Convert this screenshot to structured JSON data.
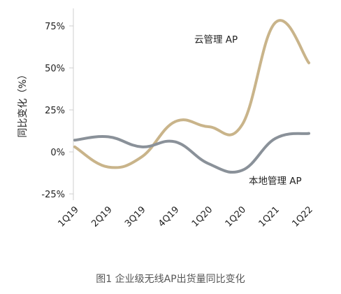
{
  "chart_data": {
    "type": "line",
    "title": "",
    "caption": "图1  企业级无线AP出货量同比变化",
    "xlabel": "",
    "ylabel": "同比变化（%）",
    "categories": [
      "1Q19",
      "2Q19",
      "3Q19",
      "4Q19",
      "1Q20",
      "1Q20",
      "1Q21",
      "1Q22"
    ],
    "ylim": [
      -25,
      75
    ],
    "yticks": [
      -25,
      0,
      25,
      50,
      75
    ],
    "ytick_labels": [
      "-25%",
      "0%",
      "25%",
      "50%",
      "75%"
    ],
    "grid": false,
    "series": [
      {
        "name": "云管理 AP",
        "color": "#c9b48a",
        "values": [
          3,
          -9,
          -3,
          18,
          15,
          16,
          77,
          53
        ]
      },
      {
        "name": "本地管理 AP",
        "color": "#8a9199",
        "values": [
          7,
          9,
          3,
          6,
          -7,
          -11,
          8,
          11
        ]
      }
    ]
  }
}
